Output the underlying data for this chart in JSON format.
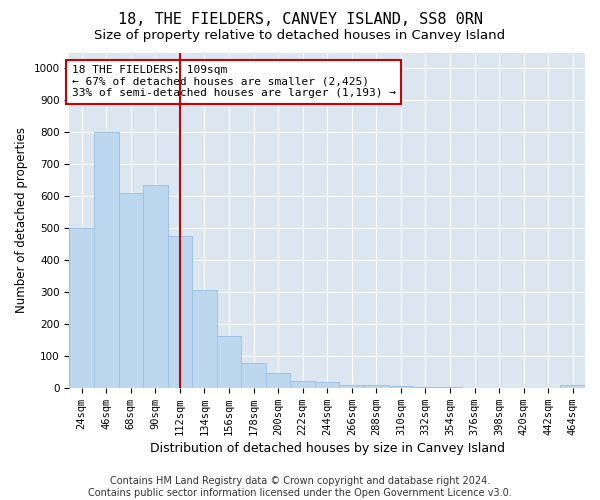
{
  "title": "18, THE FIELDERS, CANVEY ISLAND, SS8 0RN",
  "subtitle": "Size of property relative to detached houses in Canvey Island",
  "xlabel": "Distribution of detached houses by size in Canvey Island",
  "ylabel": "Number of detached properties",
  "footnote": "Contains HM Land Registry data © Crown copyright and database right 2024.\nContains public sector information licensed under the Open Government Licence v3.0.",
  "categories": [
    "24sqm",
    "46sqm",
    "68sqm",
    "90sqm",
    "112sqm",
    "134sqm",
    "156sqm",
    "178sqm",
    "200sqm",
    "222sqm",
    "244sqm",
    "266sqm",
    "288sqm",
    "310sqm",
    "332sqm",
    "354sqm",
    "376sqm",
    "398sqm",
    "420sqm",
    "442sqm",
    "464sqm"
  ],
  "values": [
    500,
    800,
    610,
    635,
    475,
    305,
    162,
    78,
    45,
    22,
    18,
    10,
    10,
    5,
    2,
    2,
    1,
    1,
    0,
    0,
    8
  ],
  "bar_color": "#bdd7ee",
  "bar_edge_color": "#9dc3e6",
  "vline_x": 4,
  "vline_color": "#cc0000",
  "annotation_text": "18 THE FIELDERS: 109sqm\n← 67% of detached houses are smaller (2,425)\n33% of semi-detached houses are larger (1,193) →",
  "annotation_box_color": "#ffffff",
  "annotation_box_edgecolor": "#cc0000",
  "ylim": [
    0,
    1050
  ],
  "yticks": [
    0,
    100,
    200,
    300,
    400,
    500,
    600,
    700,
    800,
    900,
    1000
  ],
  "plot_bg_color": "#dce6f1",
  "grid_color": "#ffffff",
  "title_fontsize": 11,
  "subtitle_fontsize": 9.5,
  "xlabel_fontsize": 9,
  "ylabel_fontsize": 8.5,
  "tick_fontsize": 7.5,
  "annotation_fontsize": 8,
  "footnote_fontsize": 7
}
